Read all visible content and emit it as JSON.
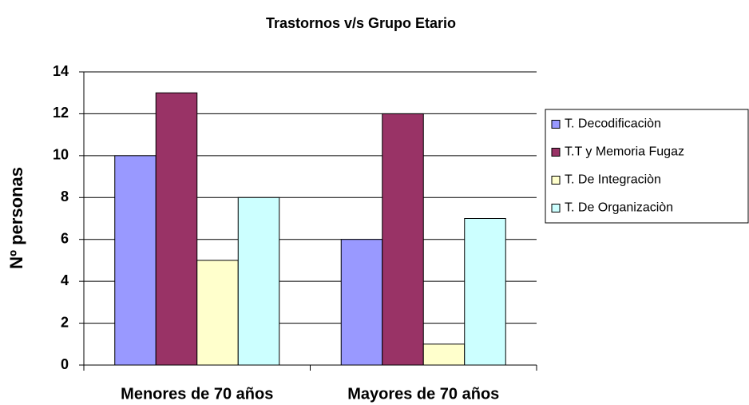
{
  "chart_data": {
    "type": "bar",
    "title": "Trastornos v/s Grupo Etario",
    "y_label": "Nº personas",
    "categories": [
      "Menores de 70 años",
      "Mayores de 70 años"
    ],
    "series": [
      {
        "name": "T. Decodificaciòn",
        "color": "#9999ff",
        "values": [
          10,
          6
        ]
      },
      {
        "name": "T.T y Memoria Fugaz",
        "color": "#993366",
        "values": [
          13,
          12
        ]
      },
      {
        "name": "T. De Integraciòn",
        "color": "#ffffcc",
        "values": [
          5,
          1
        ]
      },
      {
        "name": "T. De Organizaciòn",
        "color": "#ccffff",
        "values": [
          8,
          7
        ]
      }
    ],
    "ylim": [
      0,
      14
    ],
    "yticks": [
      0,
      2,
      4,
      6,
      8,
      10,
      12,
      14
    ],
    "grid": true,
    "legend": "right"
  }
}
